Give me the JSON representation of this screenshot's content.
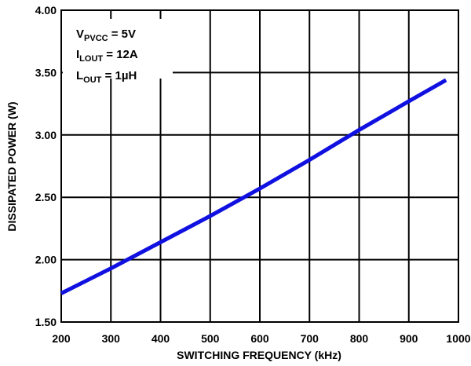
{
  "chart_data": {
    "type": "line",
    "xlabel": "SWITCHING FREQUENCY (kHz)",
    "ylabel": "DISSIPATED POWER (W)",
    "xlim": [
      200,
      1000
    ],
    "ylim": [
      1.5,
      4.0
    ],
    "x_ticks": [
      "200",
      "300",
      "400",
      "500",
      "600",
      "700",
      "800",
      "900",
      "1000"
    ],
    "y_ticks": [
      "1.50",
      "2.00",
      "2.50",
      "3.00",
      "3.50",
      "4.00"
    ],
    "grid": true,
    "series": [
      {
        "color": "#1010e0",
        "x": [
          200,
          300,
          400,
          500,
          600,
          700,
          800,
          900,
          975
        ],
        "y": [
          1.73,
          1.93,
          2.14,
          2.35,
          2.57,
          2.8,
          3.04,
          3.27,
          3.44
        ]
      }
    ],
    "annotations": [
      {
        "main": "V",
        "sub": "PVCC",
        "rest": " = 5V"
      },
      {
        "main": "I",
        "sub": "LOUT",
        "rest": " = 12A"
      },
      {
        "main": "L",
        "sub": "OUT",
        "rest": " = 1µH"
      }
    ]
  }
}
